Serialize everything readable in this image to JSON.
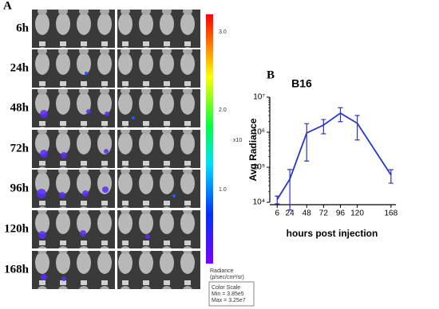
{
  "panel_a": {
    "label": "A",
    "rows": [
      "6h",
      "24h",
      "48h",
      "72h",
      "96h",
      "120h",
      "168h"
    ],
    "colorbar_ticks": [
      "3.0",
      "2.0",
      "1.0"
    ],
    "colorbar_unit": "x10",
    "radiance_label": "Radiance",
    "radiance_unit": "(p/sec/cm²/sr)",
    "color_scale": {
      "title": "Color Scale",
      "min": "Min = 3.85e5",
      "max": "Max = 3.25e7"
    }
  },
  "chart_data": {
    "type": "line",
    "panel_label": "B",
    "title": "B16",
    "x_label": "hours post injection",
    "y_label": "Avg Radiance",
    "x": [
      6,
      24,
      48,
      72,
      96,
      120,
      168
    ],
    "series": [
      {
        "name": "B16",
        "color": "#2b35c8",
        "values": [
          12000,
          46000,
          950000,
          1600000,
          3500000,
          1800000,
          60000
        ],
        "errors": [
          3000,
          40000,
          800000,
          700000,
          1500000,
          1200000,
          25000
        ]
      }
    ],
    "xlim": [
      0,
      175
    ],
    "xticks": [
      6,
      24,
      48,
      72,
      96,
      120,
      168
    ],
    "ylim": [
      10000,
      10000000
    ],
    "yticks": [
      {
        "value": 10000,
        "label": "10⁴"
      },
      {
        "value": 100000,
        "label": "10⁵"
      },
      {
        "value": 1000000,
        "label": "10⁶"
      },
      {
        "value": 10000000,
        "label": "10⁷"
      }
    ],
    "log_y": true
  }
}
